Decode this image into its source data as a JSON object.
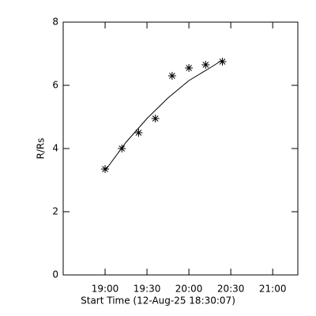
{
  "chart_data": {
    "type": "scatter",
    "x_label": "Start Time (12-Aug-25 18:30:07)",
    "y_label": "R/Rs",
    "xlim": [
      0,
      168
    ],
    "xticks": [
      {
        "value": 30,
        "label": "19:00"
      },
      {
        "value": 60,
        "label": "19:30"
      },
      {
        "value": 90,
        "label": "20:00"
      },
      {
        "value": 120,
        "label": "20:30"
      },
      {
        "value": 150,
        "label": "21:00"
      }
    ],
    "ylim": [
      0,
      8
    ],
    "yticks": [
      0,
      2,
      4,
      6,
      8
    ],
    "color": "#000000",
    "x": [
      30,
      42,
      54,
      66,
      78,
      90,
      102,
      114
    ],
    "values": [
      3.35,
      4.0,
      4.5,
      4.95,
      6.3,
      6.55,
      6.65,
      6.75
    ],
    "fit": {
      "x": [
        30,
        45,
        60,
        75,
        90,
        105,
        114
      ],
      "values": [
        3.3,
        4.2,
        4.95,
        5.6,
        6.15,
        6.55,
        6.8
      ]
    }
  }
}
